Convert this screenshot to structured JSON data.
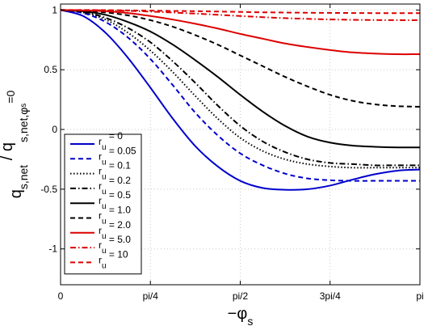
{
  "chart_data": {
    "type": "line",
    "title": "",
    "xlabel": "−φ",
    "xlabel_sub": "s",
    "ylabel_main": "q",
    "ylabel_sub1": "s,net",
    "ylabel_mid": " / q",
    "ylabel_sub2": "s,net,φ",
    "ylabel_subsub": "s",
    "ylabel_sub3": "=0",
    "xlim": [
      0,
      3.14159
    ],
    "ylim": [
      -1.3,
      1.05
    ],
    "x_ticks": [
      {
        "value": 0,
        "label": "0"
      },
      {
        "value": 0.7854,
        "label": "pi/4"
      },
      {
        "value": 1.5708,
        "label": "pi/2"
      },
      {
        "value": 2.3562,
        "label": "3pi/4"
      },
      {
        "value": 3.14159,
        "label": "pi"
      }
    ],
    "y_ticks": [
      {
        "value": 1,
        "label": "1"
      },
      {
        "value": 0.5,
        "label": "0.5"
      },
      {
        "value": 0,
        "label": "0"
      },
      {
        "value": -0.5,
        "label": "-0.5"
      },
      {
        "value": -1,
        "label": "-1"
      }
    ],
    "grid": true,
    "legend_position": "bottom-left",
    "x": [
      0,
      0.19635,
      0.3927,
      0.58905,
      0.7854,
      0.98175,
      1.1781,
      1.37445,
      1.5708,
      1.76715,
      1.9635,
      2.15985,
      2.3562,
      2.55255,
      2.7489,
      2.94525,
      3.14159
    ],
    "series": [
      {
        "name": "r",
        "sub": "u",
        "suffix": " = 0",
        "color": "#0000cc",
        "dash": "solid",
        "values": [
          1,
          0.95,
          0.81,
          0.6,
          0.35,
          0.09,
          -0.14,
          -0.31,
          -0.43,
          -0.49,
          -0.505,
          -0.5,
          -0.47,
          -0.42,
          -0.375,
          -0.345,
          -0.335
        ]
      },
      {
        "name": "r",
        "sub": "u",
        "suffix": " = 0.05",
        "color": "#0000cc",
        "dash": "dashed",
        "values": [
          1,
          0.975,
          0.9,
          0.77,
          0.59,
          0.37,
          0.14,
          -0.05,
          -0.2,
          -0.3,
          -0.37,
          -0.41,
          -0.425,
          -0.43,
          -0.43,
          -0.43,
          -0.43
        ]
      },
      {
        "name": "r",
        "sub": "u",
        "suffix": " = 0.1",
        "color": "#000000",
        "dash": "dotted",
        "values": [
          1,
          0.98,
          0.92,
          0.81,
          0.66,
          0.48,
          0.28,
          0.09,
          -0.07,
          -0.18,
          -0.25,
          -0.29,
          -0.31,
          -0.32,
          -0.32,
          -0.32,
          -0.32
        ]
      },
      {
        "name": "r",
        "sub": "u",
        "suffix": " = 0.2",
        "color": "#000000",
        "dash": "dashdot",
        "values": [
          1,
          0.985,
          0.935,
          0.85,
          0.73,
          0.57,
          0.39,
          0.2,
          0.03,
          -0.1,
          -0.19,
          -0.25,
          -0.28,
          -0.29,
          -0.3,
          -0.3,
          -0.3
        ]
      },
      {
        "name": "r",
        "sub": "u",
        "suffix": " = 0.5",
        "color": "#000000",
        "dash": "solid",
        "values": [
          1,
          0.99,
          0.96,
          0.9,
          0.82,
          0.71,
          0.58,
          0.44,
          0.29,
          0.15,
          0.03,
          -0.06,
          -0.11,
          -0.135,
          -0.145,
          -0.15,
          -0.15
        ]
      },
      {
        "name": "r",
        "sub": "u",
        "suffix": " = 1.0",
        "color": "#000000",
        "dash": "dashed",
        "values": [
          1,
          0.995,
          0.98,
          0.955,
          0.915,
          0.86,
          0.79,
          0.71,
          0.62,
          0.53,
          0.44,
          0.36,
          0.29,
          0.24,
          0.21,
          0.195,
          0.19
        ]
      },
      {
        "name": "r",
        "sub": "u",
        "suffix": " = 2.0",
        "color": "#dd0000",
        "dash": "solid",
        "values": [
          1,
          0.997,
          0.99,
          0.975,
          0.95,
          0.92,
          0.885,
          0.845,
          0.8,
          0.76,
          0.72,
          0.69,
          0.665,
          0.645,
          0.635,
          0.63,
          0.63
        ]
      },
      {
        "name": "r",
        "sub": "u",
        "suffix": " = 5.0",
        "color": "#dd0000",
        "dash": "dashdot",
        "values": [
          1,
          0.999,
          0.997,
          0.993,
          0.987,
          0.979,
          0.97,
          0.96,
          0.95,
          0.94,
          0.932,
          0.926,
          0.921,
          0.918,
          0.916,
          0.915,
          0.915
        ]
      },
      {
        "name": "r",
        "sub": "u",
        "suffix": " = 10",
        "color": "#dd0000",
        "dash": "dashed",
        "values": [
          1,
          1,
          0.999,
          0.997,
          0.995,
          0.992,
          0.99,
          0.987,
          0.984,
          0.981,
          0.979,
          0.977,
          0.976,
          0.975,
          0.974,
          0.974,
          0.974
        ]
      }
    ]
  }
}
